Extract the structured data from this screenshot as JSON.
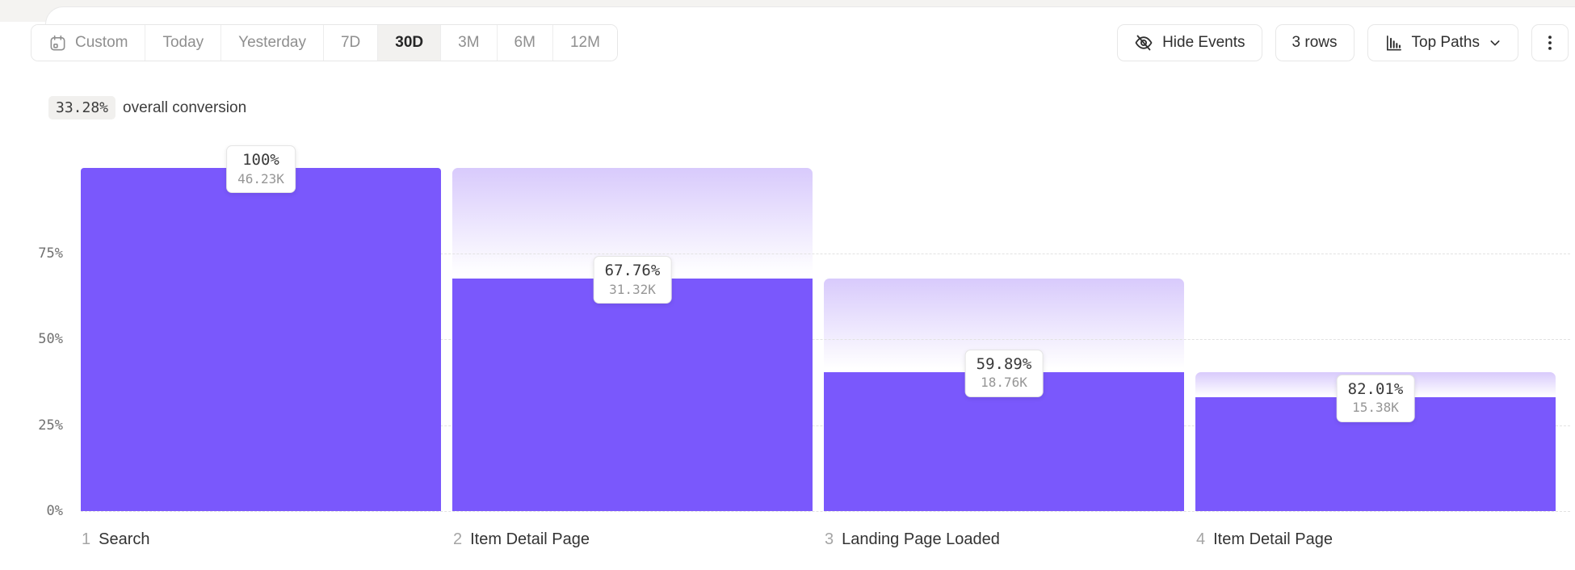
{
  "toolbar": {
    "date_ranges": [
      {
        "label": "Custom",
        "icon": "calendar-icon",
        "selected": false
      },
      {
        "label": "Today",
        "selected": false
      },
      {
        "label": "Yesterday",
        "selected": false
      },
      {
        "label": "7D",
        "selected": false
      },
      {
        "label": "30D",
        "selected": true
      },
      {
        "label": "3M",
        "selected": false
      },
      {
        "label": "6M",
        "selected": false
      },
      {
        "label": "12M",
        "selected": false
      }
    ],
    "hide_events": {
      "label": "Hide Events",
      "icon": "eye-off-icon"
    },
    "rows": {
      "label": "3 rows"
    },
    "top_paths": {
      "label": "Top Paths",
      "icon": "bar-chart-icon",
      "chevron": "chevron-down-icon"
    },
    "more_options": {
      "icon": "kebab-menu-icon"
    }
  },
  "summary": {
    "value": "33.28%",
    "label": "overall conversion"
  },
  "chart_data": {
    "type": "funnel",
    "y_ticks": [
      "0%",
      "25%",
      "50%",
      "75%"
    ],
    "y_range": [
      0,
      100
    ],
    "grid": "dashed-horizontal",
    "legend": "none",
    "colors": {
      "bar": "#7a58fc",
      "gradient_top": "#d8cafc",
      "gridline": "#e2e2e2"
    },
    "steps": [
      {
        "index": "1",
        "name": "Search",
        "conversion_label": "100%",
        "count_label": "46.23K",
        "conversion_from_prev_pct": 100,
        "overall_pct": 100,
        "prev_overall_pct": 100
      },
      {
        "index": "2",
        "name": "Item Detail Page",
        "conversion_label": "67.76%",
        "count_label": "31.32K",
        "conversion_from_prev_pct": 67.76,
        "overall_pct": 67.76,
        "prev_overall_pct": 100
      },
      {
        "index": "3",
        "name": "Landing Page Loaded",
        "conversion_label": "59.89%",
        "count_label": "18.76K",
        "conversion_from_prev_pct": 59.89,
        "overall_pct": 40.58,
        "prev_overall_pct": 67.76
      },
      {
        "index": "4",
        "name": "Item Detail Page",
        "conversion_label": "82.01%",
        "count_label": "15.38K",
        "conversion_from_prev_pct": 82.01,
        "overall_pct": 33.27,
        "prev_overall_pct": 40.58
      }
    ]
  }
}
